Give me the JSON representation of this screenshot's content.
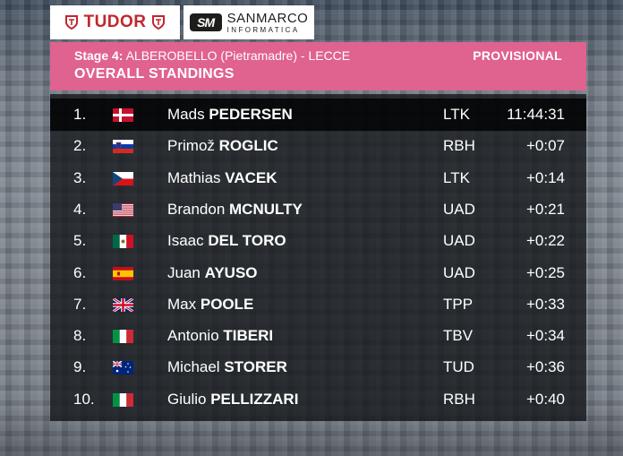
{
  "sponsors": {
    "tudor": "TUDOR",
    "sanmarco_line1": "SANMARCO",
    "sanmarco_line2": "INFORMATICA",
    "sanmarco_mark": "SM"
  },
  "header": {
    "stage_label": "Stage 4:",
    "stage_route": "ALBEROBELLO (Pietramadre) - LECCE",
    "status": "PROVISIONAL",
    "title": "OVERALL STANDINGS",
    "accent_color": "#e0628f"
  },
  "standings": [
    {
      "pos": "1.",
      "flag": "denmark",
      "first": "Mads",
      "last": "PEDERSEN",
      "team": "LTK",
      "time": "11:44:31"
    },
    {
      "pos": "2.",
      "flag": "slovenia",
      "first": "Primož",
      "last": "ROGLIC",
      "team": "RBH",
      "time": "+0:07"
    },
    {
      "pos": "3.",
      "flag": "czechia",
      "first": "Mathias",
      "last": "VACEK",
      "team": "LTK",
      "time": "+0:14"
    },
    {
      "pos": "4.",
      "flag": "usa",
      "first": "Brandon",
      "last": "MCNULTY",
      "team": "UAD",
      "time": "+0:21"
    },
    {
      "pos": "5.",
      "flag": "mexico",
      "first": "Isaac",
      "last": "DEL TORO",
      "team": "UAD",
      "time": "+0:22"
    },
    {
      "pos": "6.",
      "flag": "spain",
      "first": "Juan",
      "last": "AYUSO",
      "team": "UAD",
      "time": "+0:25"
    },
    {
      "pos": "7.",
      "flag": "uk",
      "first": "Max",
      "last": "POOLE",
      "team": "TPP",
      "time": "+0:33"
    },
    {
      "pos": "8.",
      "flag": "italy",
      "first": "Antonio",
      "last": "TIBERI",
      "team": "TBV",
      "time": "+0:34"
    },
    {
      "pos": "9.",
      "flag": "australia",
      "first": "Michael",
      "last": "STORER",
      "team": "TUD",
      "time": "+0:36"
    },
    {
      "pos": "10.",
      "flag": "italy",
      "first": "Giulio",
      "last": "PELLIZZARI",
      "team": "RBH",
      "time": "+0:40"
    }
  ]
}
